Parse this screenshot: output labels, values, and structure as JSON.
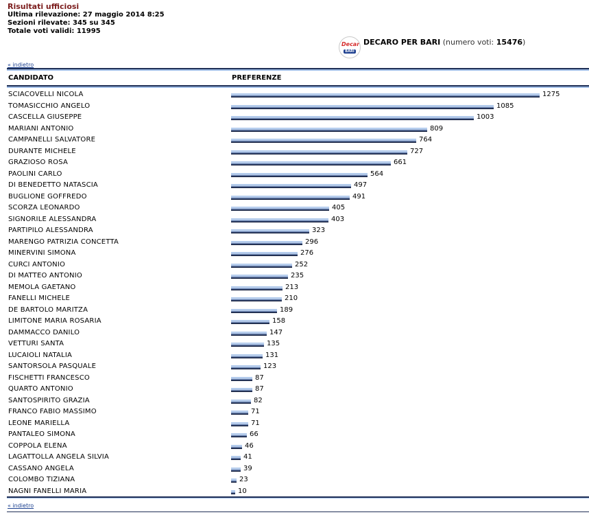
{
  "header": {
    "title": "Risultati ufficiosi",
    "ultima_rilevazione": "Ultima rilevazione: 27 maggio 2014 8:25",
    "sezioni": "Sezioni rilevate: 345 su 345",
    "totale": "Totale voti validi: 11995"
  },
  "party": {
    "logo_text_top": "Decaro",
    "logo_text_bottom": "BARI",
    "name": "DECARO PER BARI",
    "votes_label": "(numero voti: ",
    "votes_value": "15476",
    "votes_close": ")"
  },
  "nav": {
    "back_label": "« indietro"
  },
  "table": {
    "col_candidate": "CANDIDATO",
    "col_preferences": "PREFERENZE",
    "max_value": 1275,
    "rows": [
      {
        "name": "SCIACOVELLI NICOLA",
        "votes": 1275
      },
      {
        "name": "TOMASICCHIO ANGELO",
        "votes": 1085
      },
      {
        "name": "CASCELLA GIUSEPPE",
        "votes": 1003
      },
      {
        "name": "MARIANI ANTONIO",
        "votes": 809
      },
      {
        "name": "CAMPANELLI SALVATORE",
        "votes": 764
      },
      {
        "name": "DURANTE MICHELE",
        "votes": 727
      },
      {
        "name": "GRAZIOSO ROSA",
        "votes": 661
      },
      {
        "name": "PAOLINI CARLO",
        "votes": 564
      },
      {
        "name": "DI BENEDETTO NATASCIA",
        "votes": 497
      },
      {
        "name": "BUGLIONE GOFFREDO",
        "votes": 491
      },
      {
        "name": "SCORZA LEONARDO",
        "votes": 405
      },
      {
        "name": "SIGNORILE ALESSANDRA",
        "votes": 403
      },
      {
        "name": "PARTIPILO ALESSANDRA",
        "votes": 323
      },
      {
        "name": "MARENGO PATRIZIA CONCETTA",
        "votes": 296
      },
      {
        "name": "MINERVINI SIMONA",
        "votes": 276
      },
      {
        "name": "CURCI ANTONIO",
        "votes": 252
      },
      {
        "name": "DI MATTEO ANTONIO",
        "votes": 235
      },
      {
        "name": "MEMOLA GAETANO",
        "votes": 213
      },
      {
        "name": "FANELLI MICHELE",
        "votes": 210
      },
      {
        "name": "DE BARTOLO MARITZA",
        "votes": 189
      },
      {
        "name": "LIMITONE MARIA ROSARIA",
        "votes": 158
      },
      {
        "name": "DAMMACCO DANILO",
        "votes": 147
      },
      {
        "name": "VETTURI SANTA",
        "votes": 135
      },
      {
        "name": "LUCAIOLI NATALIA",
        "votes": 131
      },
      {
        "name": "SANTORSOLA PASQUALE",
        "votes": 123
      },
      {
        "name": "FISCHETTI FRANCESCO",
        "votes": 87
      },
      {
        "name": "QUARTO ANTONIO",
        "votes": 87
      },
      {
        "name": "SANTOSPIRITO GRAZIA",
        "votes": 82
      },
      {
        "name": "FRANCO FABIO MASSIMO",
        "votes": 71
      },
      {
        "name": "LEONE MARIELLA",
        "votes": 71
      },
      {
        "name": "PANTALEO SIMONA",
        "votes": 66
      },
      {
        "name": "COPPOLA ELENA",
        "votes": 46
      },
      {
        "name": "LAGATTOLLA ANGELA SILVIA",
        "votes": 41
      },
      {
        "name": "CASSANO ANGELA",
        "votes": 39
      },
      {
        "name": "COLOMBO TIZIANA",
        "votes": 23
      },
      {
        "name": "NAGNI FANELLI MARIA",
        "votes": 10
      }
    ]
  },
  "colors": {
    "title": "#7b1c1c",
    "link": "#1a3f8f",
    "rule_dark": "#1f2f55",
    "rule_light": "#9fbde6",
    "bar_dark": "#0d152e",
    "bar_light": "#9fbde6"
  }
}
